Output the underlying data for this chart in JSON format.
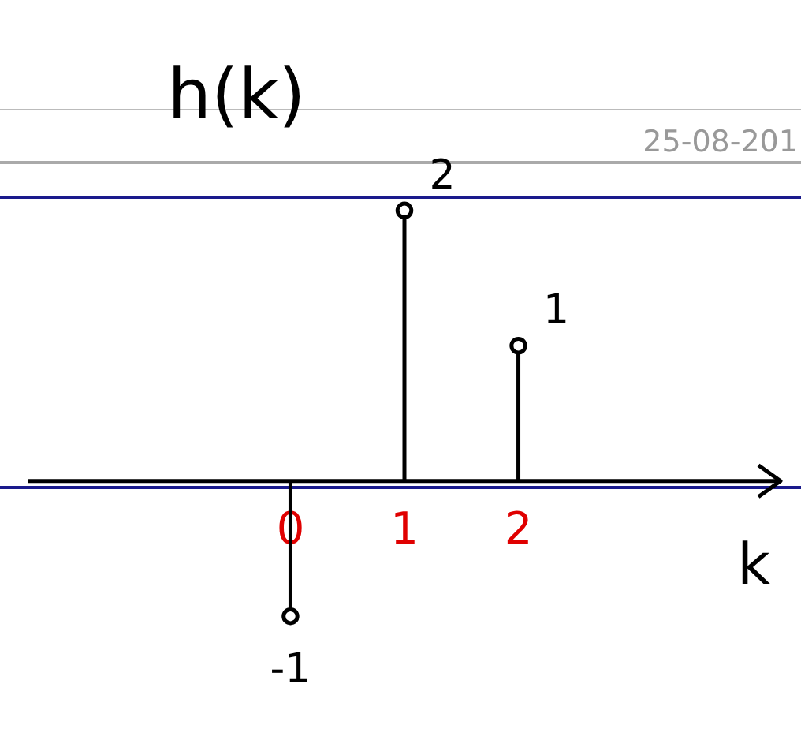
{
  "chart_data": {
    "type": "lollipop",
    "title": "h(k)",
    "xlabel": "k",
    "annotations": [
      "25-08-201"
    ],
    "x": [
      0,
      1,
      2
    ],
    "values": [
      -1,
      2,
      1
    ],
    "color": "#000000",
    "marker": "circle",
    "data_labels": true,
    "xlim": [
      -2.3,
      4.3
    ],
    "xticks": [
      0,
      1,
      2
    ],
    "tick_labels": "x"
  }
}
